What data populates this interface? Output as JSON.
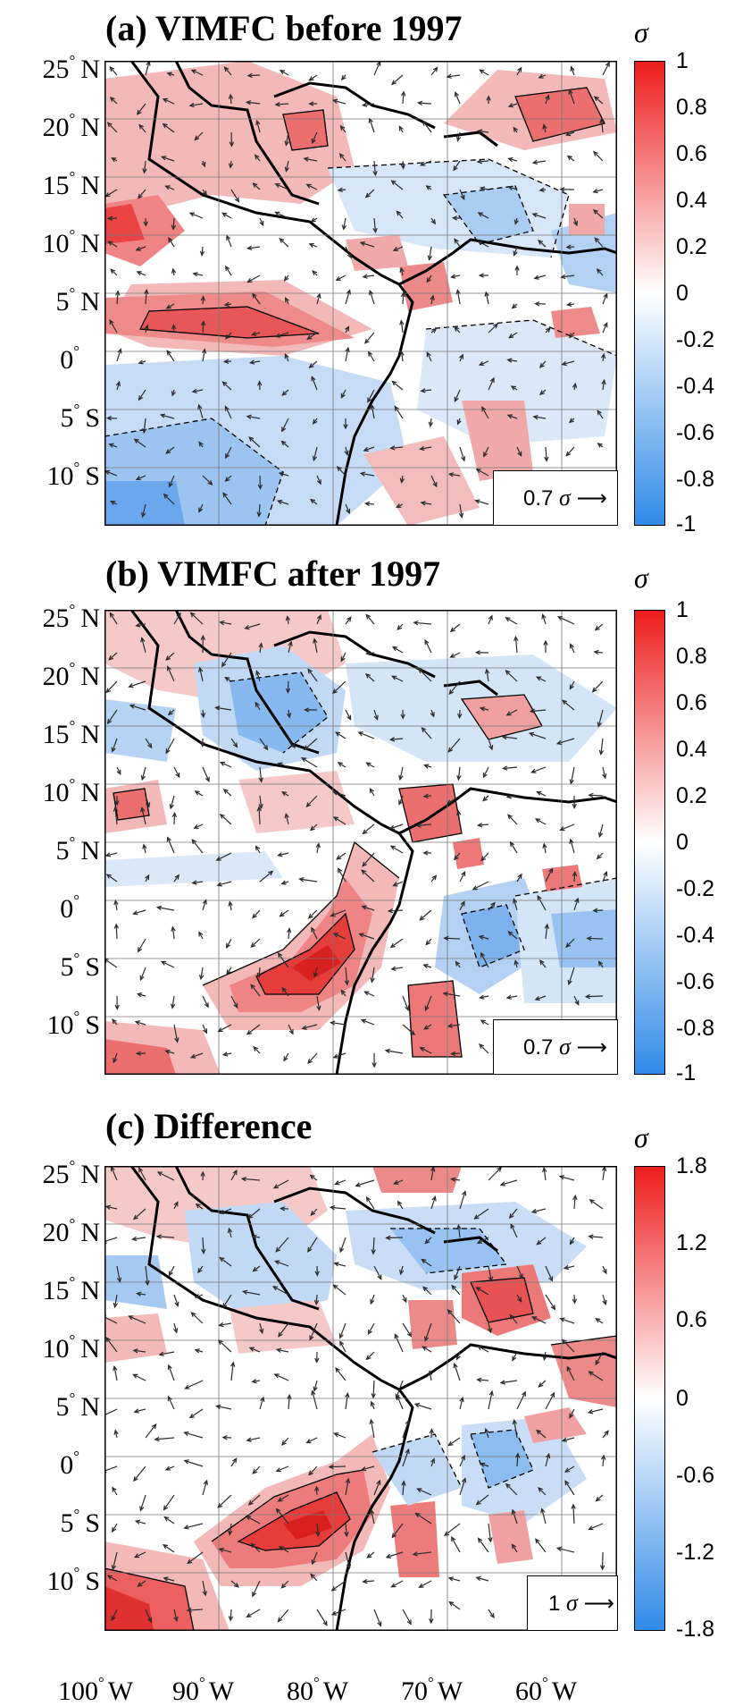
{
  "panels": [
    {
      "title": "(a) VIMFC before 1997",
      "colorbar_unit": "σ",
      "colorbar_ticks": [
        "1",
        "0.8",
        "0.6",
        "0.4",
        "0.2",
        "0",
        "-0.2",
        "-0.4",
        "-0.6",
        "-0.8",
        "-1"
      ],
      "reference_vector_value": "0.7",
      "reference_vector_unit": "σ"
    },
    {
      "title": "(b) VIMFC after 1997",
      "colorbar_unit": "σ",
      "colorbar_ticks": [
        "1",
        "0.8",
        "0.6",
        "0.4",
        "0.2",
        "0",
        "-0.2",
        "-0.4",
        "-0.6",
        "-0.8",
        "-1"
      ],
      "reference_vector_value": "0.7",
      "reference_vector_unit": "σ"
    },
    {
      "title": "(c) Difference",
      "colorbar_unit": "σ",
      "colorbar_ticks": [
        "1.8",
        "1.2",
        "0.6",
        "0",
        "-0.6",
        "-1.2",
        "-1.8"
      ],
      "reference_vector_value": "1",
      "reference_vector_unit": "σ"
    }
  ],
  "latitude_labels": [
    {
      "value": "25",
      "hemi": "N"
    },
    {
      "value": "20",
      "hemi": "N"
    },
    {
      "value": "15",
      "hemi": "N"
    },
    {
      "value": "10",
      "hemi": "N"
    },
    {
      "value": "5",
      "hemi": "N"
    },
    {
      "value": "0",
      "hemi": ""
    },
    {
      "value": "5",
      "hemi": "S"
    },
    {
      "value": "10",
      "hemi": "S"
    }
  ],
  "longitude_labels": [
    {
      "value": "100",
      "hemi": "W"
    },
    {
      "value": "90",
      "hemi": "W"
    },
    {
      "value": "80",
      "hemi": "W"
    },
    {
      "value": "70",
      "hemi": "W"
    },
    {
      "value": "60",
      "hemi": "W"
    }
  ],
  "degree_symbol": "°",
  "colors": {
    "positive": "#ee2b2b",
    "negative": "#3a8ce6",
    "neutral": "#ffffff",
    "coast": "#000000",
    "vector": "#2c2c2c"
  }
}
